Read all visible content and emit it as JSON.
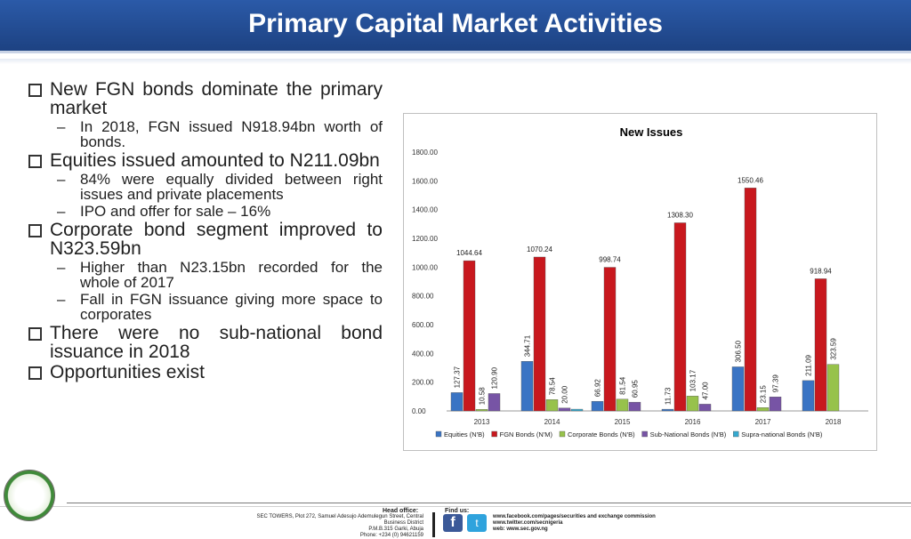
{
  "header": {
    "title": "Primary Capital Market Activities"
  },
  "bullets": [
    {
      "text": "New FGN bonds dominate the primary market",
      "subs": [
        "In 2018, FGN issued N918.94bn worth of bonds."
      ]
    },
    {
      "text": "Equities issued amounted to N211.09bn",
      "subs": [
        "84% were equally divided between right issues and private placements",
        "IPO and offer for sale – 16%"
      ]
    },
    {
      "text": "Corporate bond segment improved to N323.59bn",
      "subs": [
        "Higher than N23.15bn recorded for the whole of 2017",
        "Fall in FGN issuance giving more space to corporates"
      ]
    },
    {
      "text": "There were no sub-national bond issuance in 2018",
      "subs": []
    },
    {
      "text": "Opportunities exist",
      "subs": []
    }
  ],
  "chart_data": {
    "type": "bar",
    "title": "New Issues",
    "categories": [
      "2013",
      "2014",
      "2015",
      "2016",
      "2017",
      "2018"
    ],
    "ylim": [
      0,
      1800
    ],
    "yticks": [
      "0.00",
      "200.00",
      "400.00",
      "600.00",
      "800.00",
      "1000.00",
      "1200.00",
      "1400.00",
      "1600.00",
      "1800.00"
    ],
    "legend_position": "bottom",
    "series": [
      {
        "name": "Equities (N'B)",
        "color": "#3a74c4",
        "values": [
          127.37,
          344.71,
          66.92,
          11.73,
          306.5,
          211.09
        ],
        "labels": [
          "127.37",
          "344.71",
          "66.92",
          "11.73",
          "306.50",
          "211.09"
        ]
      },
      {
        "name": "FGN Bonds (N'M)",
        "color": "#c8181e",
        "values": [
          1044.64,
          1070.24,
          998.74,
          1308.3,
          1550.46,
          918.94
        ],
        "labels": [
          "1044.64",
          "1070.24",
          "998.74",
          "1308.30",
          "1550.46",
          "918.94"
        ]
      },
      {
        "name": "Corporate Bonds (N'B)",
        "color": "#97c24b",
        "values": [
          10.58,
          78.54,
          81.54,
          103.17,
          23.15,
          323.59
        ],
        "labels": [
          "10.58",
          "78.54",
          "81.54",
          "103.17",
          "23.15",
          "323.59"
        ]
      },
      {
        "name": "Sub-National Bonds (N'B)",
        "color": "#7754a5",
        "values": [
          120.9,
          20.0,
          60.95,
          47.0,
          97.39,
          0
        ],
        "labels": [
          "120.90",
          "20.00",
          "60.95",
          "47.00",
          "97.39",
          ""
        ]
      },
      {
        "name": "Supra-national Bonds (N'B)",
        "color": "#35a9cf",
        "values": [
          0,
          12,
          0,
          0,
          0,
          0
        ],
        "labels": [
          "",
          "",
          "",
          "",
          "",
          ""
        ]
      }
    ]
  },
  "footer": {
    "head_office_label": "Head office:",
    "address_line1": "SEC TOWERS, Plot 272, Samuel Adesujo Ademulegun Street, Central",
    "address_line2": "Business District",
    "address_line3": "P.M.B.315 Garki, Abuja",
    "address_line4": "Phone: +234 (0) 94621159",
    "find_us_label": "Find us:",
    "facebook_link": "www.facebook.com/pages/securities and exchange commission",
    "twitter_link": "www.twitter.com/secnigeria",
    "web_link": "web: www.sec.gov.ng"
  }
}
